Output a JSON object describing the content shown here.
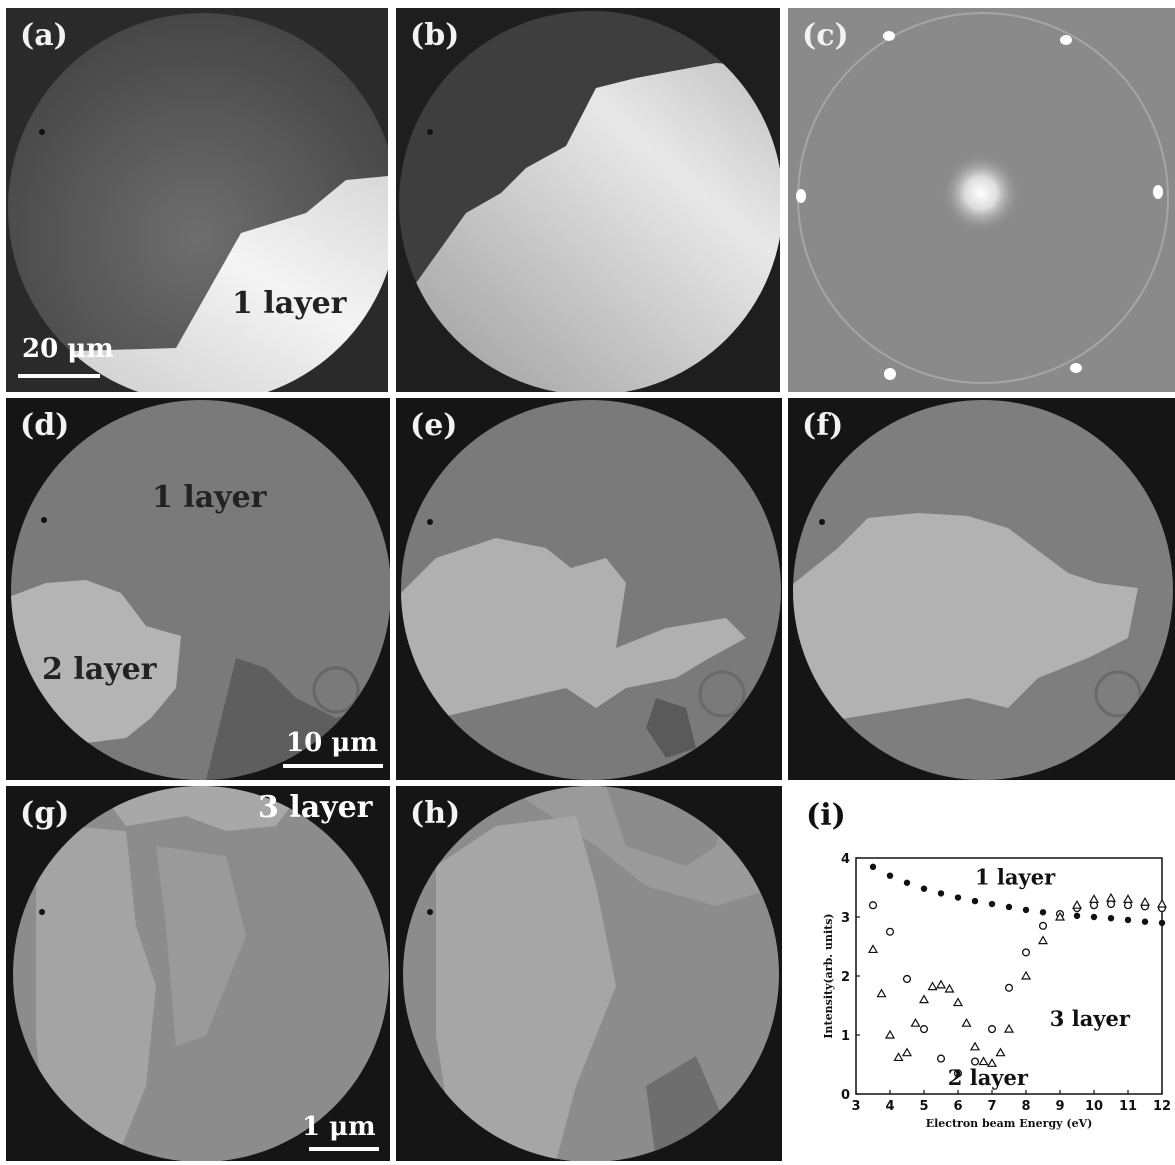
{
  "panels": {
    "a": {
      "label": "(a)",
      "annotation": "1 layer",
      "scale": "20 μm"
    },
    "b": {
      "label": "(b)"
    },
    "c": {
      "label": "(c)"
    },
    "d": {
      "label": "(d)",
      "annotation1": "1 layer",
      "annotation2": "2 layer",
      "scale": "10 μm"
    },
    "e": {
      "label": "(e)"
    },
    "f": {
      "label": "(f)"
    },
    "g": {
      "label": "(g)",
      "annotation": "3 layer",
      "scale": "1 μm"
    },
    "h": {
      "label": "(h)"
    },
    "i": {
      "label": "(i)"
    }
  },
  "chart_data": {
    "type": "scatter",
    "xlabel": "Electron beam Energy (eV)",
    "ylabel": "Intensity(arb. units)",
    "xlim": [
      3,
      12
    ],
    "ylim": [
      0,
      4
    ],
    "xticks": [
      "3",
      "4",
      "5",
      "6",
      "7",
      "8",
      "9",
      "10",
      "11",
      "12"
    ],
    "yticks": [
      "0",
      "1",
      "2",
      "3",
      "4"
    ],
    "series": [
      {
        "name": "1 layer",
        "marker": "filled-circle",
        "x": [
          3.5,
          4,
          4.5,
          5,
          5.5,
          6,
          6.5,
          7,
          7.5,
          8,
          8.5,
          9,
          9.5,
          10,
          10.5,
          11,
          11.5,
          12
        ],
        "y": [
          3.85,
          3.7,
          3.58,
          3.48,
          3.4,
          3.33,
          3.27,
          3.22,
          3.17,
          3.12,
          3.08,
          3.05,
          3.02,
          3.0,
          2.98,
          2.95,
          2.92,
          2.9
        ]
      },
      {
        "name": "2 layer",
        "marker": "open-circle",
        "x": [
          3.5,
          4,
          4.5,
          5,
          5.5,
          6,
          6.5,
          7,
          7.5,
          8,
          8.5,
          9,
          9.5,
          10,
          10.5,
          11,
          11.5,
          12
        ],
        "y": [
          3.2,
          2.75,
          1.95,
          1.1,
          0.6,
          0.35,
          0.55,
          1.1,
          1.8,
          2.4,
          2.85,
          3.05,
          3.15,
          3.2,
          3.22,
          3.2,
          3.18,
          3.15
        ]
      },
      {
        "name": "3 layer",
        "marker": "open-triangle",
        "x": [
          3.5,
          3.75,
          4,
          4.25,
          4.5,
          4.75,
          5,
          5.25,
          5.5,
          5.75,
          6,
          6.25,
          6.5,
          6.75,
          7,
          7.25,
          7.5,
          8,
          8.5,
          9,
          9.5,
          10,
          10.5,
          11,
          11.5,
          12
        ],
        "y": [
          2.45,
          1.7,
          1.0,
          0.62,
          0.7,
          1.2,
          1.6,
          1.82,
          1.85,
          1.78,
          1.55,
          1.2,
          0.8,
          0.55,
          0.52,
          0.7,
          1.1,
          2.0,
          2.6,
          3.0,
          3.2,
          3.3,
          3.32,
          3.3,
          3.25,
          3.22
        ]
      }
    ]
  }
}
